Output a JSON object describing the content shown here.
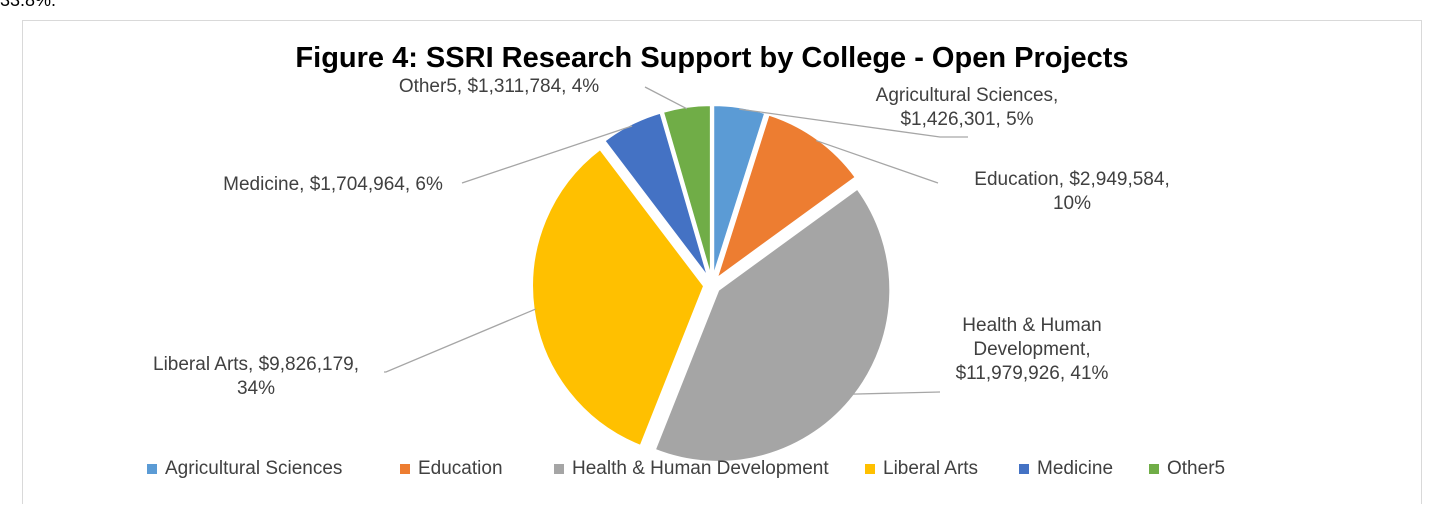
{
  "page": {
    "top_fragment": "33.8%."
  },
  "chart_data": {
    "type": "pie",
    "title": "Figure 4: SSRI Research Support by College - Open Projects",
    "categories": [
      "Agricultural Sciences",
      "Education",
      "Health & Human Development",
      "Liberal Arts",
      "Medicine",
      "Other5"
    ],
    "values": [
      1426301,
      2949584,
      11979926,
      9826179,
      1704964,
      1311784
    ],
    "percent_labels": [
      "5%",
      "10%",
      "41%",
      "34%",
      "6%",
      "4%"
    ],
    "data_labels": [
      [
        "Agricultural Sciences,",
        "$1,426,301, 5%"
      ],
      [
        "Education, $2,949,584,",
        "10%"
      ],
      [
        "Health & Human",
        "Development,",
        "$11,979,926, 41%"
      ],
      [
        "Liberal Arts, $9,826,179,",
        "34%"
      ],
      [
        "Medicine, $1,704,964, 6%"
      ],
      [
        "Other5, $1,311,784, 4%"
      ]
    ],
    "colors": [
      "#5b9bd5",
      "#ed7d31",
      "#a5a5a5",
      "#ffc000",
      "#4472c4",
      "#70ad47"
    ],
    "exploded": true,
    "legend_position": "bottom",
    "start_angle_deg": 0,
    "direction": "clockwise"
  }
}
